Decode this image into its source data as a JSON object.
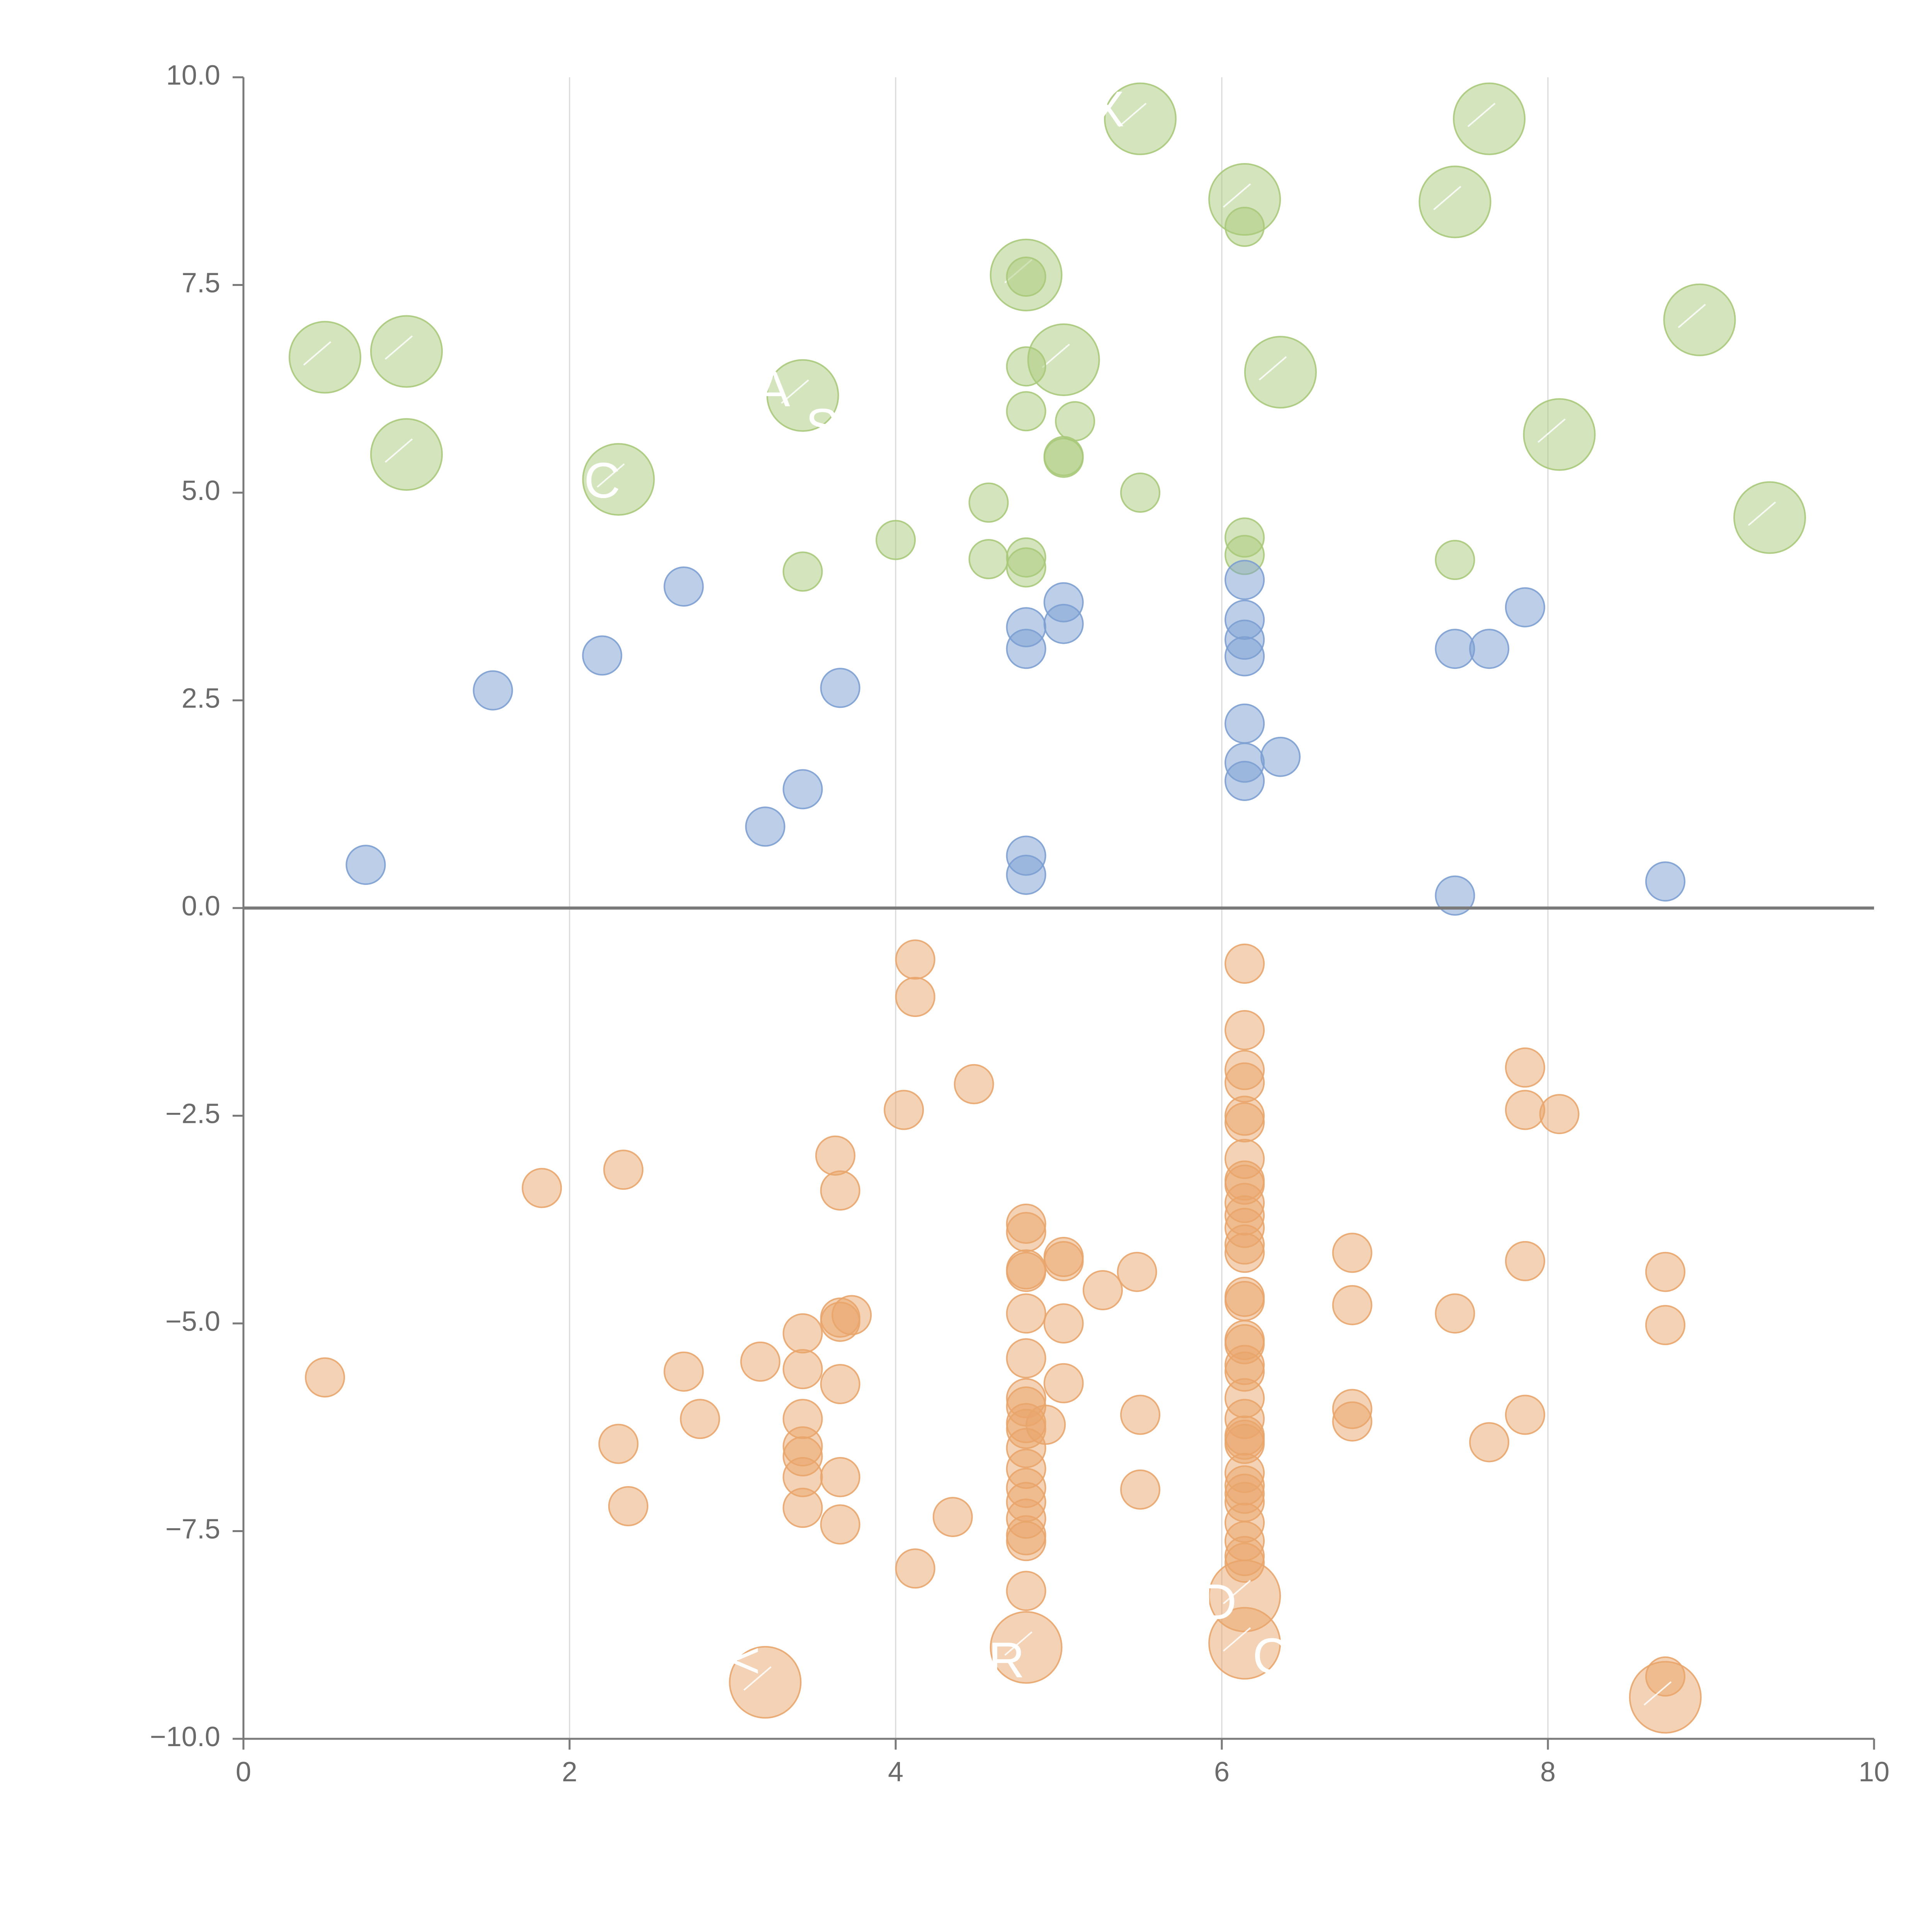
{
  "chart_data": {
    "type": "scatter",
    "title": "",
    "xlabel": "",
    "ylabel": "",
    "xlim": [
      0,
      10
    ],
    "ylim": [
      -10,
      10
    ],
    "grid": "vertical",
    "legend": "none",
    "x_ticks": [
      "0",
      "2",
      "4",
      "6",
      "8",
      "10"
    ],
    "y_ticks": [
      "10.0",
      "7.5",
      "5.0",
      "2.5",
      "0.0",
      "−2.5",
      "−5.0",
      "−7.5",
      "−10.0"
    ],
    "x_tick_values": [
      0,
      2,
      4,
      6,
      8,
      10
    ],
    "y_tick_values": [
      10,
      7.5,
      5,
      2.5,
      0,
      -2.5,
      -5,
      -7.5,
      -10
    ],
    "colors": {
      "green": "#a9c97a",
      "blue": "#7c9fd1",
      "orange": "#e9a56b",
      "axis": "#7a7a7a",
      "grid": "#d9d9d9"
    },
    "series": [
      {
        "name": "green",
        "color": "#a9c97a",
        "points": [
          {
            "x": 0.5,
            "y": 6.63,
            "size": "large"
          },
          {
            "x": 1.0,
            "y": 6.7,
            "size": "large"
          },
          {
            "x": 1.0,
            "y": 5.46,
            "size": "large"
          },
          {
            "x": 2.3,
            "y": 5.16,
            "size": "large"
          },
          {
            "x": 3.43,
            "y": 6.17,
            "size": "large"
          },
          {
            "x": 4.8,
            "y": 7.62,
            "size": "large"
          },
          {
            "x": 5.03,
            "y": 6.6,
            "size": "large"
          },
          {
            "x": 5.5,
            "y": 9.5,
            "size": "large"
          },
          {
            "x": 6.14,
            "y": 8.53,
            "size": "large"
          },
          {
            "x": 6.36,
            "y": 6.45,
            "size": "large"
          },
          {
            "x": 7.43,
            "y": 8.5,
            "size": "large"
          },
          {
            "x": 7.64,
            "y": 9.5,
            "size": "large"
          },
          {
            "x": 8.07,
            "y": 5.7,
            "size": "large"
          },
          {
            "x": 8.93,
            "y": 7.08,
            "size": "large"
          },
          {
            "x": 9.36,
            "y": 4.7,
            "size": "large"
          },
          {
            "x": 3.43,
            "y": 4.05,
            "size": "small"
          },
          {
            "x": 4.0,
            "y": 4.43,
            "size": "small"
          },
          {
            "x": 4.57,
            "y": 4.88,
            "size": "small"
          },
          {
            "x": 4.57,
            "y": 4.2,
            "size": "small"
          },
          {
            "x": 4.8,
            "y": 4.22,
            "size": "small"
          },
          {
            "x": 4.8,
            "y": 4.1,
            "size": "small"
          },
          {
            "x": 4.8,
            "y": 5.98,
            "size": "small"
          },
          {
            "x": 4.8,
            "y": 6.52,
            "size": "small"
          },
          {
            "x": 4.8,
            "y": 7.6,
            "size": "small"
          },
          {
            "x": 5.03,
            "y": 5.44,
            "size": "small"
          },
          {
            "x": 5.03,
            "y": 5.42,
            "size": "small"
          },
          {
            "x": 5.1,
            "y": 5.86,
            "size": "small"
          },
          {
            "x": 5.5,
            "y": 5.0,
            "size": "small"
          },
          {
            "x": 6.14,
            "y": 4.46,
            "size": "small"
          },
          {
            "x": 6.14,
            "y": 4.25,
            "size": "small"
          },
          {
            "x": 6.14,
            "y": 8.2,
            "size": "small"
          },
          {
            "x": 7.43,
            "y": 4.19,
            "size": "small"
          }
        ]
      },
      {
        "name": "blue",
        "color": "#7c9fd1",
        "points": [
          {
            "x": 0.75,
            "y": 0.52
          },
          {
            "x": 1.53,
            "y": 2.62
          },
          {
            "x": 2.2,
            "y": 3.04
          },
          {
            "x": 2.7,
            "y": 3.87
          },
          {
            "x": 3.2,
            "y": 0.98
          },
          {
            "x": 3.43,
            "y": 1.43
          },
          {
            "x": 3.66,
            "y": 2.65
          },
          {
            "x": 4.8,
            "y": 0.63
          },
          {
            "x": 4.8,
            "y": 0.4
          },
          {
            "x": 4.8,
            "y": 3.12
          },
          {
            "x": 4.8,
            "y": 3.38
          },
          {
            "x": 5.03,
            "y": 3.68
          },
          {
            "x": 5.03,
            "y": 3.42
          },
          {
            "x": 6.14,
            "y": 3.95
          },
          {
            "x": 6.14,
            "y": 3.47
          },
          {
            "x": 6.14,
            "y": 3.23
          },
          {
            "x": 6.14,
            "y": 3.03
          },
          {
            "x": 6.14,
            "y": 2.22
          },
          {
            "x": 6.14,
            "y": 1.75
          },
          {
            "x": 6.14,
            "y": 1.53
          },
          {
            "x": 6.36,
            "y": 1.82
          },
          {
            "x": 7.43,
            "y": 3.12
          },
          {
            "x": 7.43,
            "y": 0.15
          },
          {
            "x": 7.64,
            "y": 3.12
          },
          {
            "x": 7.86,
            "y": 3.62
          },
          {
            "x": 8.72,
            "y": 0.32
          }
        ]
      },
      {
        "name": "orange",
        "color": "#e9a56b",
        "points": [
          {
            "x": 0.5,
            "y": -5.65,
            "size": "small"
          },
          {
            "x": 1.83,
            "y": -3.37,
            "size": "small"
          },
          {
            "x": 2.3,
            "y": -6.45,
            "size": "small"
          },
          {
            "x": 2.33,
            "y": -3.15,
            "size": "small"
          },
          {
            "x": 2.36,
            "y": -7.2,
            "size": "small"
          },
          {
            "x": 2.7,
            "y": -5.58,
            "size": "small"
          },
          {
            "x": 2.8,
            "y": -6.15,
            "size": "small"
          },
          {
            "x": 3.17,
            "y": -5.46,
            "size": "small"
          },
          {
            "x": 3.43,
            "y": -5.12,
            "size": "small"
          },
          {
            "x": 3.43,
            "y": -5.55,
            "size": "small"
          },
          {
            "x": 3.43,
            "y": -6.15,
            "size": "small"
          },
          {
            "x": 3.43,
            "y": -6.48,
            "size": "small"
          },
          {
            "x": 3.43,
            "y": -6.6,
            "size": "small"
          },
          {
            "x": 3.43,
            "y": -6.85,
            "size": "small"
          },
          {
            "x": 3.43,
            "y": -7.22,
            "size": "small"
          },
          {
            "x": 3.63,
            "y": -2.98,
            "size": "small"
          },
          {
            "x": 3.66,
            "y": -3.4,
            "size": "small"
          },
          {
            "x": 3.66,
            "y": -4.93,
            "size": "small"
          },
          {
            "x": 3.66,
            "y": -4.98,
            "size": "small"
          },
          {
            "x": 3.66,
            "y": -5.73,
            "size": "small"
          },
          {
            "x": 3.66,
            "y": -6.85,
            "size": "small"
          },
          {
            "x": 3.66,
            "y": -7.42,
            "size": "small"
          },
          {
            "x": 3.73,
            "y": -4.9,
            "size": "small"
          },
          {
            "x": 4.05,
            "y": -2.43,
            "size": "small"
          },
          {
            "x": 4.12,
            "y": -0.62,
            "size": "small"
          },
          {
            "x": 4.12,
            "y": -1.07,
            "size": "small"
          },
          {
            "x": 4.12,
            "y": -7.95,
            "size": "small"
          },
          {
            "x": 4.35,
            "y": -7.33,
            "size": "small"
          },
          {
            "x": 4.48,
            "y": -2.12,
            "size": "small"
          },
          {
            "x": 4.8,
            "y": -3.8,
            "size": "small"
          },
          {
            "x": 4.8,
            "y": -3.9,
            "size": "small"
          },
          {
            "x": 4.8,
            "y": -4.35,
            "size": "small"
          },
          {
            "x": 4.8,
            "y": -4.38,
            "size": "small"
          },
          {
            "x": 4.8,
            "y": -4.88,
            "size": "small"
          },
          {
            "x": 4.8,
            "y": -5.42,
            "size": "small"
          },
          {
            "x": 4.8,
            "y": -5.9,
            "size": "small"
          },
          {
            "x": 4.8,
            "y": -6.0,
            "size": "small"
          },
          {
            "x": 4.8,
            "y": -6.2,
            "size": "small"
          },
          {
            "x": 4.8,
            "y": -6.27,
            "size": "small"
          },
          {
            "x": 4.8,
            "y": -6.5,
            "size": "small"
          },
          {
            "x": 4.8,
            "y": -6.75,
            "size": "small"
          },
          {
            "x": 4.8,
            "y": -6.98,
            "size": "small"
          },
          {
            "x": 4.8,
            "y": -7.15,
            "size": "small"
          },
          {
            "x": 4.8,
            "y": -7.35,
            "size": "small"
          },
          {
            "x": 4.8,
            "y": -7.55,
            "size": "small"
          },
          {
            "x": 4.8,
            "y": -7.62,
            "size": "small"
          },
          {
            "x": 4.8,
            "y": -8.22,
            "size": "small"
          },
          {
            "x": 4.92,
            "y": -6.22,
            "size": "small"
          },
          {
            "x": 5.03,
            "y": -4.2,
            "size": "small"
          },
          {
            "x": 5.03,
            "y": -4.25,
            "size": "small"
          },
          {
            "x": 5.03,
            "y": -5.0,
            "size": "small"
          },
          {
            "x": 5.03,
            "y": -5.72,
            "size": "small"
          },
          {
            "x": 5.27,
            "y": -4.6,
            "size": "small"
          },
          {
            "x": 5.48,
            "y": -4.38,
            "size": "small"
          },
          {
            "x": 5.5,
            "y": -6.1,
            "size": "small"
          },
          {
            "x": 5.5,
            "y": -7.0,
            "size": "small"
          },
          {
            "x": 6.14,
            "y": -0.67,
            "size": "small"
          },
          {
            "x": 6.14,
            "y": -1.47,
            "size": "small"
          },
          {
            "x": 6.14,
            "y": -1.95,
            "size": "small"
          },
          {
            "x": 6.14,
            "y": -2.1,
            "size": "small"
          },
          {
            "x": 6.14,
            "y": -2.5,
            "size": "small"
          },
          {
            "x": 6.14,
            "y": -2.58,
            "size": "small"
          },
          {
            "x": 6.14,
            "y": -3.02,
            "size": "small"
          },
          {
            "x": 6.14,
            "y": -3.28,
            "size": "small"
          },
          {
            "x": 6.14,
            "y": -3.33,
            "size": "small"
          },
          {
            "x": 6.14,
            "y": -3.55,
            "size": "small"
          },
          {
            "x": 6.14,
            "y": -3.7,
            "size": "small"
          },
          {
            "x": 6.14,
            "y": -3.85,
            "size": "small"
          },
          {
            "x": 6.14,
            "y": -4.05,
            "size": "small"
          },
          {
            "x": 6.14,
            "y": -4.15,
            "size": "small"
          },
          {
            "x": 6.14,
            "y": -4.68,
            "size": "small"
          },
          {
            "x": 6.14,
            "y": -4.73,
            "size": "small"
          },
          {
            "x": 6.14,
            "y": -5.2,
            "size": "small"
          },
          {
            "x": 6.14,
            "y": -5.25,
            "size": "small"
          },
          {
            "x": 6.14,
            "y": -5.5,
            "size": "small"
          },
          {
            "x": 6.14,
            "y": -5.58,
            "size": "small"
          },
          {
            "x": 6.14,
            "y": -5.9,
            "size": "small"
          },
          {
            "x": 6.14,
            "y": -6.15,
            "size": "small"
          },
          {
            "x": 6.14,
            "y": -6.35,
            "size": "small"
          },
          {
            "x": 6.14,
            "y": -6.4,
            "size": "small"
          },
          {
            "x": 6.14,
            "y": -6.45,
            "size": "small"
          },
          {
            "x": 6.14,
            "y": -6.8,
            "size": "small"
          },
          {
            "x": 6.14,
            "y": -6.95,
            "size": "small"
          },
          {
            "x": 6.14,
            "y": -7.05,
            "size": "small"
          },
          {
            "x": 6.14,
            "y": -7.15,
            "size": "small"
          },
          {
            "x": 6.14,
            "y": -7.4,
            "size": "small"
          },
          {
            "x": 6.14,
            "y": -7.62,
            "size": "small"
          },
          {
            "x": 6.14,
            "y": -7.8,
            "size": "small"
          },
          {
            "x": 6.14,
            "y": -7.88,
            "size": "small"
          },
          {
            "x": 6.8,
            "y": -4.15,
            "size": "small"
          },
          {
            "x": 6.8,
            "y": -4.78,
            "size": "small"
          },
          {
            "x": 6.8,
            "y": -6.03,
            "size": "small"
          },
          {
            "x": 6.8,
            "y": -6.18,
            "size": "small"
          },
          {
            "x": 7.43,
            "y": -4.88,
            "size": "small"
          },
          {
            "x": 7.64,
            "y": -6.43,
            "size": "small"
          },
          {
            "x": 7.86,
            "y": -1.92,
            "size": "small"
          },
          {
            "x": 7.86,
            "y": -2.43,
            "size": "small"
          },
          {
            "x": 7.86,
            "y": -4.25,
            "size": "small"
          },
          {
            "x": 7.86,
            "y": -6.1,
            "size": "small"
          },
          {
            "x": 8.07,
            "y": -2.48,
            "size": "small"
          },
          {
            "x": 8.72,
            "y": -4.38,
            "size": "small"
          },
          {
            "x": 8.72,
            "y": -5.02,
            "size": "small"
          },
          {
            "x": 8.72,
            "y": -9.25,
            "size": "small"
          },
          {
            "x": 3.2,
            "y": -9.32,
            "size": "large"
          },
          {
            "x": 4.8,
            "y": -8.9,
            "size": "large"
          },
          {
            "x": 6.14,
            "y": -8.28,
            "size": "large"
          },
          {
            "x": 6.14,
            "y": -8.85,
            "size": "large"
          },
          {
            "x": 8.72,
            "y": -9.5,
            "size": "large"
          }
        ]
      }
    ],
    "annotations": [
      {
        "text": "X",
        "x": 5.3,
        "y": 9.57
      },
      {
        "text": "A",
        "x": 3.25,
        "y": 6.2
      },
      {
        "text": "S",
        "x": 3.55,
        "y": 5.75
      },
      {
        "text": "C",
        "x": 2.2,
        "y": 5.1
      },
      {
        "text": "D",
        "x": 5.98,
        "y": -8.4
      },
      {
        "text": "R",
        "x": 4.68,
        "y": -9.1
      },
      {
        "text": "C",
        "x": 6.3,
        "y": -9.05
      },
      {
        "text": "<",
        "x": 3.08,
        "y": -9.1
      }
    ]
  }
}
